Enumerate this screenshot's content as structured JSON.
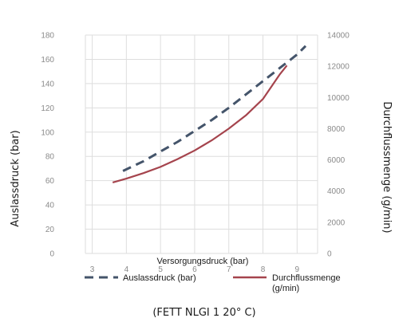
{
  "chart_data": {
    "type": "line",
    "xlabel": "Versorgungsdruck (bar)",
    "ylabel_left": "Auslassdruck (bar)",
    "ylabel_right": "Durchflussmenge (g/min)",
    "caption": "(FETT NLGI 1 20° C)",
    "xlim": [
      2.8,
      9.6
    ],
    "x_ticks": [
      3,
      4,
      5,
      6,
      7,
      8,
      9
    ],
    "ylim_left": [
      0,
      180
    ],
    "y_ticks_left": [
      0,
      20,
      40,
      60,
      80,
      100,
      120,
      140,
      160,
      180
    ],
    "ylim_right": [
      0,
      14000
    ],
    "y_ticks_right": [
      0,
      2000,
      4000,
      6000,
      8000,
      10000,
      12000,
      14000
    ],
    "grid": true,
    "legend_position": "bottom",
    "series": [
      {
        "name": "Auslassdruck (bar)",
        "axis": "left",
        "style": "dashed",
        "color": "#44546a",
        "x": [
          3.9,
          4.5,
          5.0,
          5.5,
          6.0,
          6.5,
          7.0,
          7.5,
          8.0,
          8.5,
          9.0,
          9.25
        ],
        "values": [
          68,
          76,
          84,
          92,
          101,
          110,
          120,
          131,
          142,
          153,
          164,
          171
        ]
      },
      {
        "name": "Durchflussmenge (g/min)",
        "axis": "right",
        "style": "solid",
        "color": "#a5444d",
        "x": [
          3.6,
          4.0,
          4.5,
          5.0,
          5.5,
          6.0,
          6.5,
          7.0,
          7.5,
          8.0,
          8.5,
          8.7
        ],
        "values": [
          4550,
          4800,
          5150,
          5550,
          6050,
          6600,
          7250,
          8000,
          8850,
          9900,
          11500,
          12050
        ]
      }
    ]
  }
}
